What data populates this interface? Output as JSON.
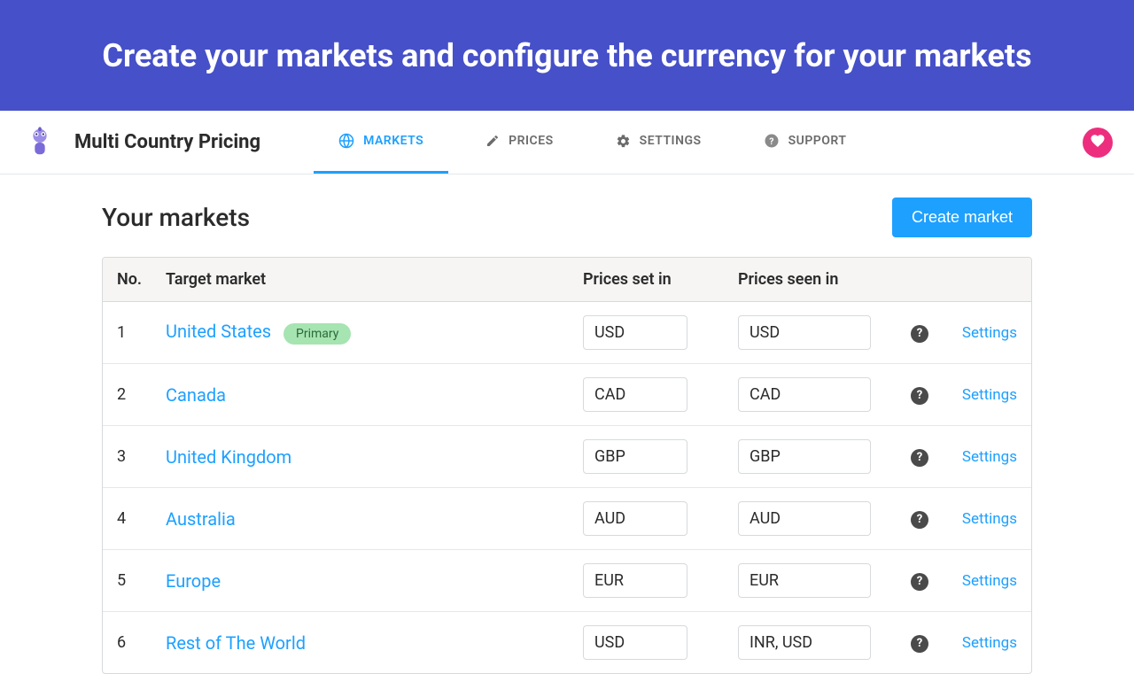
{
  "banner": {
    "text": "Create your markets and configure the currency for your markets"
  },
  "header": {
    "app_title": "Multi Country Pricing",
    "tabs": [
      {
        "label": "MARKETS",
        "active": true,
        "icon": "globe"
      },
      {
        "label": "PRICES",
        "active": false,
        "icon": "pencil"
      },
      {
        "label": "SETTINGS",
        "active": false,
        "icon": "gear"
      },
      {
        "label": "SUPPORT",
        "active": false,
        "icon": "help"
      }
    ]
  },
  "page": {
    "title": "Your markets",
    "create_label": "Create market"
  },
  "table": {
    "columns": {
      "no": "No.",
      "market": "Target market",
      "set_in": "Prices set in",
      "seen_in": "Prices seen in"
    },
    "settings_label": "Settings",
    "primary_badge": "Primary",
    "rows": [
      {
        "no": "1",
        "market": "United States",
        "primary": true,
        "set_in": "USD",
        "seen_in": "USD"
      },
      {
        "no": "2",
        "market": "Canada",
        "primary": false,
        "set_in": "CAD",
        "seen_in": "CAD"
      },
      {
        "no": "3",
        "market": "United Kingdom",
        "primary": false,
        "set_in": "GBP",
        "seen_in": "GBP"
      },
      {
        "no": "4",
        "market": "Australia",
        "primary": false,
        "set_in": "AUD",
        "seen_in": "AUD"
      },
      {
        "no": "5",
        "market": "Europe",
        "primary": false,
        "set_in": "EUR",
        "seen_in": "EUR"
      },
      {
        "no": "6",
        "market": "Rest of The World",
        "primary": false,
        "set_in": "USD",
        "seen_in": "INR, USD"
      }
    ]
  },
  "colors": {
    "banner_bg": "#4650c8",
    "accent": "#1ea0ff",
    "badge_bg": "#a6e4b2",
    "heart_bg": "#ed2e7e"
  }
}
